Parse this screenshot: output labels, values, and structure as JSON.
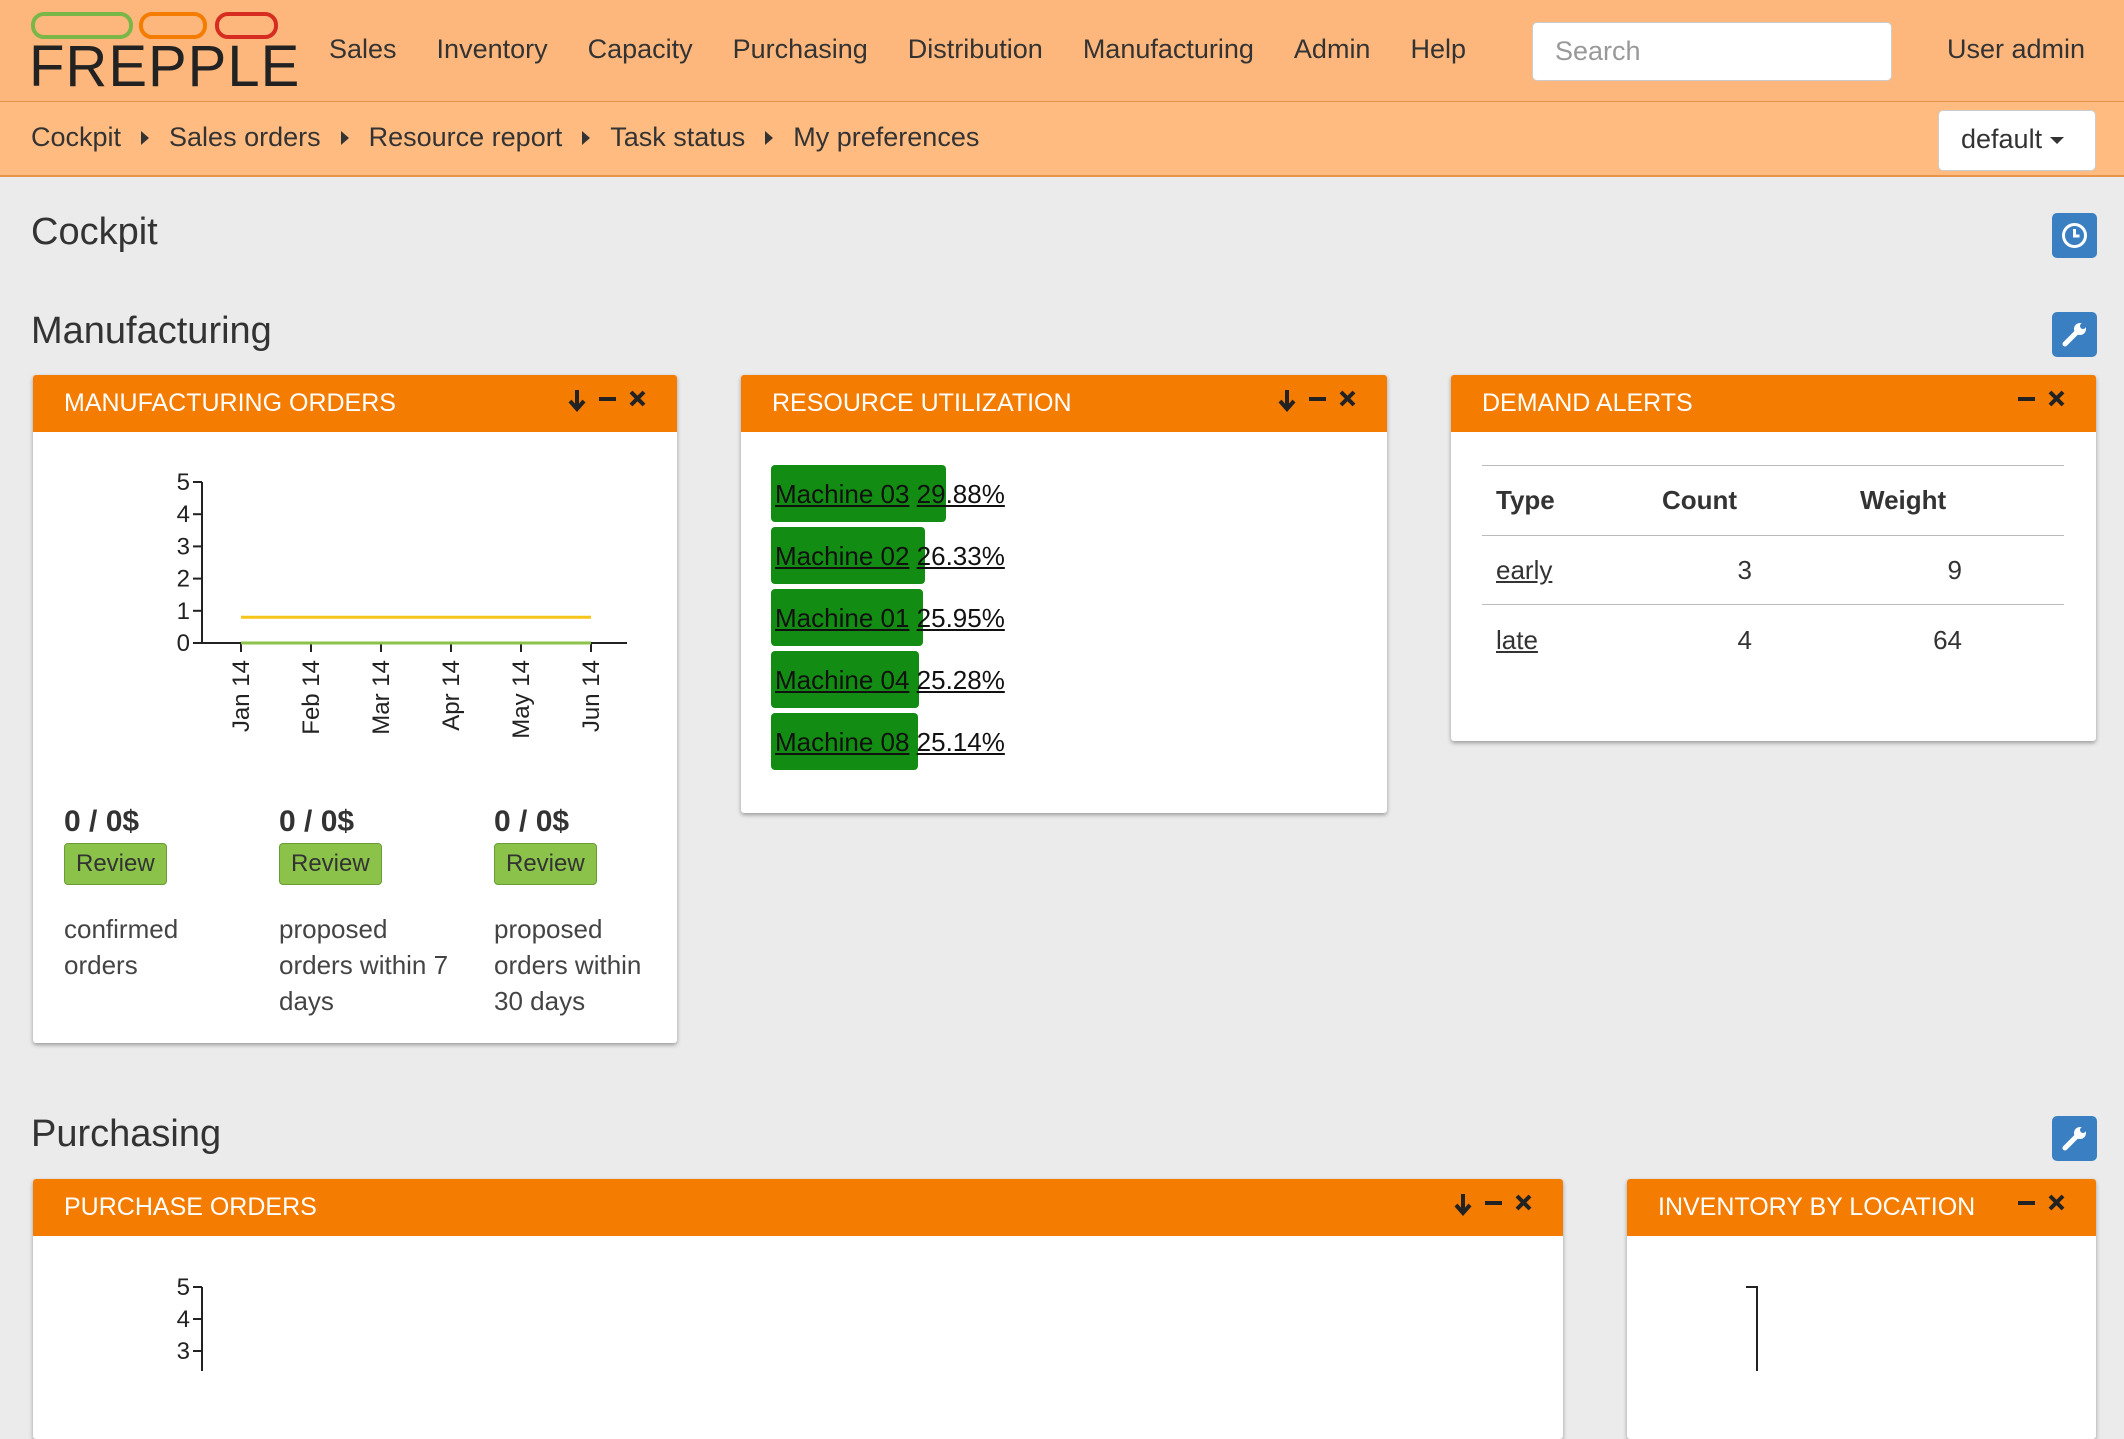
{
  "header": {
    "logo": "FREPPLE",
    "menu": [
      "Sales",
      "Inventory",
      "Capacity",
      "Purchasing",
      "Distribution",
      "Manufacturing",
      "Admin",
      "Help"
    ],
    "search_placeholder": "Search",
    "user": "User admin"
  },
  "breadcrumbs": [
    "Cockpit",
    "Sales orders",
    "Resource report",
    "Task status",
    "My preferences"
  ],
  "scenario": "default",
  "page_title": "Cockpit",
  "manufacturing": {
    "title": "Manufacturing",
    "manufacturing_orders": {
      "title": "MANUFACTURING ORDERS",
      "chart_data": {
        "type": "line",
        "categories": [
          "Jan 14",
          "Feb 14",
          "Mar 14",
          "Apr 14",
          "May 14",
          "Jun 14"
        ],
        "ylim": [
          0,
          5
        ],
        "yticks": [
          0,
          1,
          2,
          3,
          4,
          5
        ],
        "series": [
          {
            "color": "#f5c518",
            "values": [
              0.8,
              0.8,
              0.8,
              0.8,
              0.8,
              0.8
            ]
          },
          {
            "color": "#8bc34a",
            "values": [
              0,
              0,
              0,
              0,
              0,
              0
            ]
          }
        ]
      },
      "summary": [
        {
          "value": "0 / 0$",
          "button": "Review",
          "label": "confirmed orders"
        },
        {
          "value": "0 / 0$",
          "button": "Review",
          "label": "proposed orders within 7 days"
        },
        {
          "value": "0 / 0$",
          "button": "Review",
          "label": "proposed orders within 30 days"
        }
      ]
    },
    "resource_utilization": {
      "title": "RESOURCE UTILIZATION",
      "rows": [
        {
          "resource": "Machine 03",
          "utilization": "29.88%"
        },
        {
          "resource": "Machine 02",
          "utilization": "26.33%"
        },
        {
          "resource": "Machine 01",
          "utilization": "25.95%"
        },
        {
          "resource": "Machine 04",
          "utilization": "25.28%"
        },
        {
          "resource": "Machine 08",
          "utilization": "25.14%"
        }
      ]
    },
    "demand_alerts": {
      "title": "DEMAND ALERTS",
      "columns": [
        "Type",
        "Count",
        "Weight"
      ],
      "rows": [
        [
          "early",
          3,
          9
        ],
        [
          "late",
          4,
          64
        ]
      ]
    }
  },
  "purchasing": {
    "title": "Purchasing",
    "purchase_orders": {
      "title": "PURCHASE ORDERS",
      "chart_data": {
        "type": "line",
        "ylim": [
          0,
          5
        ],
        "yticks": [
          3,
          4,
          5
        ]
      }
    },
    "inventory_by_location": {
      "title": "INVENTORY BY LOCATION"
    }
  }
}
